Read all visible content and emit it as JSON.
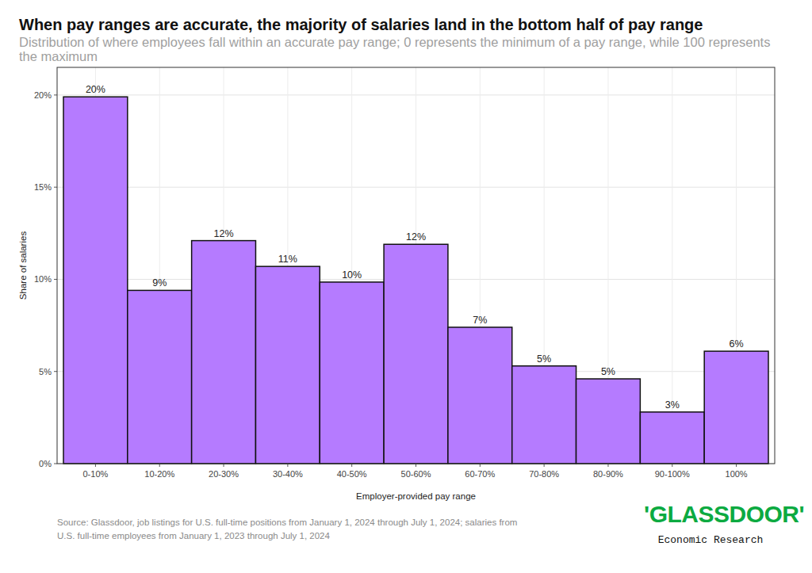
{
  "chart_data": {
    "type": "bar",
    "title": "When pay ranges are accurate, the majority of salaries land in the bottom half of pay range",
    "subtitle": "Distribution of where employees fall within an accurate pay range; 0 represents the minimum of a pay range, while 100 represents the maximum",
    "x_label": "Employer-provided pay range",
    "y_label": "Share of salaries",
    "source": "Source: Glassdoor, job listings for U.S. full-time positions from January 1, 2024 through July 1, 2024; salaries from U.S. full-time employees from January 1, 2023 through July 1, 2024",
    "logo": "'GLASSDOOR'",
    "logo_subtitle": "Economic Research",
    "categories": [
      "0-10%",
      "10-20%",
      "20-30%",
      "30-40%",
      "40-50%",
      "50-60%",
      "60-70%",
      "70-80%",
      "80-90%",
      "90-100%",
      "100%"
    ],
    "values": [
      19.9,
      9.4,
      12.1,
      10.7,
      9.85,
      11.9,
      7.4,
      5.3,
      4.6,
      2.8,
      6.1
    ],
    "value_labels": [
      "20%",
      "9%",
      "12%",
      "11%",
      "10%",
      "12%",
      "7%",
      "5%",
      "5%",
      "3%",
      "6%"
    ],
    "color": "#b57bff",
    "ylim": [
      0,
      21.5
    ],
    "yticks": [
      {
        "value": 0,
        "label": "0%"
      },
      {
        "value": 5,
        "label": "5%"
      },
      {
        "value": 10,
        "label": "10%"
      },
      {
        "value": 15,
        "label": "15%"
      },
      {
        "value": 20,
        "label": "20%"
      }
    ],
    "grid": true,
    "data_labels": true
  }
}
